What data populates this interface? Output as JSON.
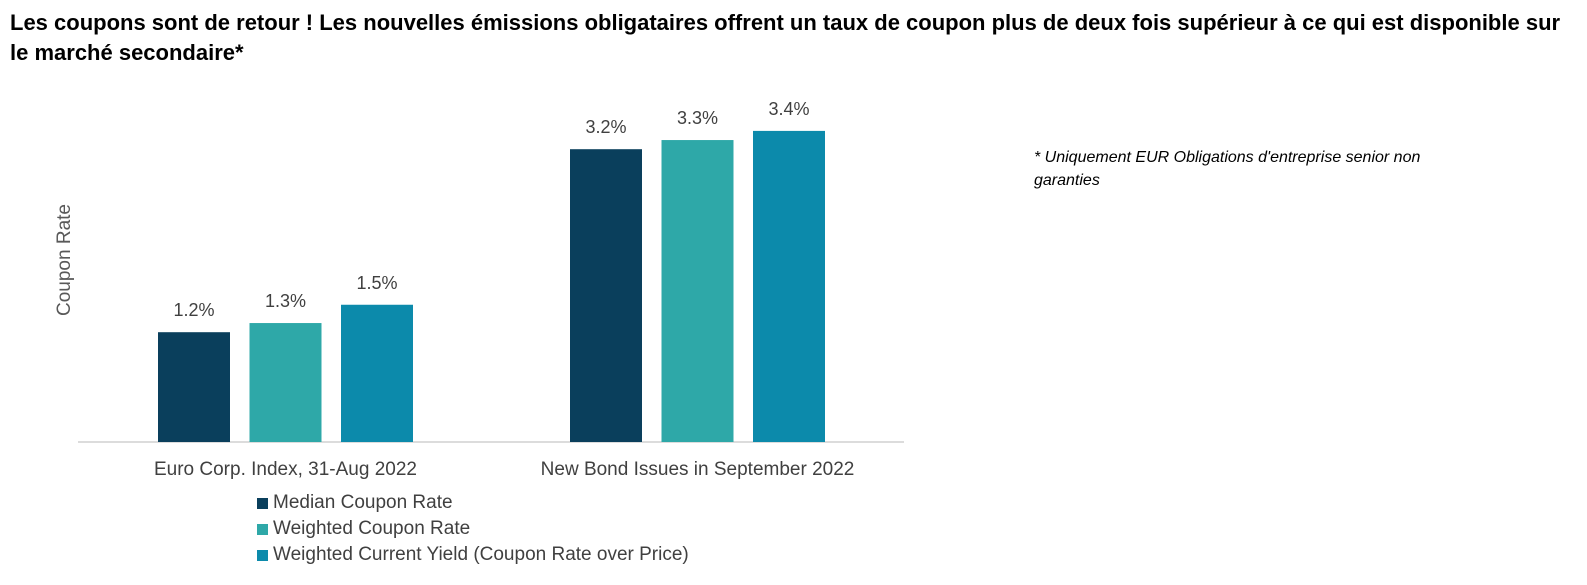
{
  "title": "Les coupons sont de retour ! Les nouvelles émissions obligataires offrent un taux de coupon plus de deux fois supérieur à ce qui est disponible sur le marché secondaire*",
  "footnote": "* Uniquement EUR Obligations d'entreprise senior non garanties",
  "chart_data": {
    "type": "bar",
    "title": "Les coupons sont de retour ! Les nouvelles émissions obligataires offrent un taux de coupon plus de deux fois supérieur à ce qui est disponible sur le marché secondaire*",
    "xlabel": "",
    "ylabel": "Coupon Rate",
    "ylim": [
      0,
      3.7
    ],
    "grid": false,
    "legend_position": "bottom-left",
    "categories": [
      "Euro Corp. Index, 31-Aug 2022",
      "New Bond Issues in September 2022"
    ],
    "series": [
      {
        "name": "Median Coupon Rate",
        "color": "#0a3f5c",
        "values": [
          1.2,
          3.2
        ],
        "labels": [
          "1.2%",
          "3.2%"
        ]
      },
      {
        "name": "Weighted Coupon Rate",
        "color": "#2ea8a8",
        "values": [
          1.3,
          3.3
        ],
        "labels": [
          "1.3%",
          "3.3%"
        ]
      },
      {
        "name": "Weighted Current Yield (Coupon Rate over Price)",
        "color": "#0c8aab",
        "values": [
          1.5,
          3.4
        ],
        "labels": [
          "1.5%",
          "3.4%"
        ]
      }
    ]
  }
}
